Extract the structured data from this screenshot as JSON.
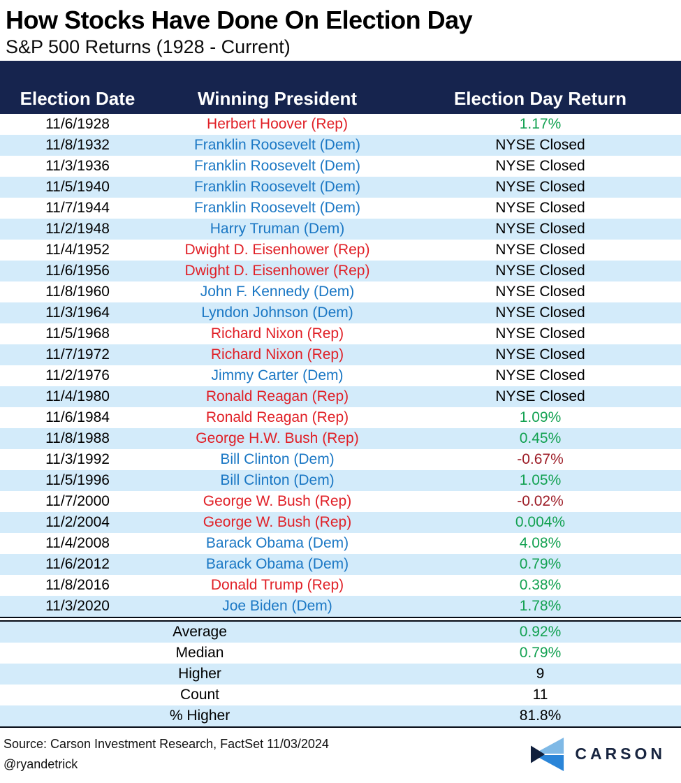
{
  "header": {
    "title": "How Stocks Have Done On Election Day",
    "subtitle": "S&P 500 Returns (1928 - Current)"
  },
  "chart_data": {
    "type": "table",
    "title": "How Stocks Have Done On Election Day",
    "subtitle": "S&P 500 Returns (1928 - Current)",
    "columns": [
      "Election Date",
      "Winning President",
      "Election Day Return"
    ],
    "rows": [
      {
        "date": "11/6/1928",
        "president": "Herbert Hoover (Rep)",
        "party": "rep",
        "return": "1.17%",
        "return_type": "positive"
      },
      {
        "date": "11/8/1932",
        "president": "Franklin Roosevelt (Dem)",
        "party": "dem",
        "return": "NYSE Closed",
        "return_type": "closed"
      },
      {
        "date": "11/3/1936",
        "president": "Franklin Roosevelt (Dem)",
        "party": "dem",
        "return": "NYSE Closed",
        "return_type": "closed"
      },
      {
        "date": "11/5/1940",
        "president": "Franklin Roosevelt (Dem)",
        "party": "dem",
        "return": "NYSE Closed",
        "return_type": "closed"
      },
      {
        "date": "11/7/1944",
        "president": "Franklin Roosevelt (Dem)",
        "party": "dem",
        "return": "NYSE Closed",
        "return_type": "closed"
      },
      {
        "date": "11/2/1948",
        "president": "Harry Truman (Dem)",
        "party": "dem",
        "return": "NYSE Closed",
        "return_type": "closed"
      },
      {
        "date": "11/4/1952",
        "president": "Dwight D. Eisenhower (Rep)",
        "party": "rep",
        "return": "NYSE Closed",
        "return_type": "closed"
      },
      {
        "date": "11/6/1956",
        "president": "Dwight D. Eisenhower (Rep)",
        "party": "rep",
        "return": "NYSE Closed",
        "return_type": "closed"
      },
      {
        "date": "11/8/1960",
        "president": "John F. Kennedy (Dem)",
        "party": "dem",
        "return": "NYSE Closed",
        "return_type": "closed"
      },
      {
        "date": "11/3/1964",
        "president": "Lyndon Johnson (Dem)",
        "party": "dem",
        "return": "NYSE Closed",
        "return_type": "closed"
      },
      {
        "date": "11/5/1968",
        "president": "Richard Nixon (Rep)",
        "party": "rep",
        "return": "NYSE Closed",
        "return_type": "closed"
      },
      {
        "date": "11/7/1972",
        "president": "Richard Nixon (Rep)",
        "party": "rep",
        "return": "NYSE Closed",
        "return_type": "closed"
      },
      {
        "date": "11/2/1976",
        "president": "Jimmy Carter (Dem)",
        "party": "dem",
        "return": "NYSE Closed",
        "return_type": "closed"
      },
      {
        "date": "11/4/1980",
        "president": "Ronald Reagan (Rep)",
        "party": "rep",
        "return": "NYSE Closed",
        "return_type": "closed"
      },
      {
        "date": "11/6/1984",
        "president": "Ronald Reagan (Rep)",
        "party": "rep",
        "return": "1.09%",
        "return_type": "positive"
      },
      {
        "date": "11/8/1988",
        "president": "George H.W. Bush (Rep)",
        "party": "rep",
        "return": "0.45%",
        "return_type": "positive"
      },
      {
        "date": "11/3/1992",
        "president": "Bill Clinton (Dem)",
        "party": "dem",
        "return": "-0.67%",
        "return_type": "negative"
      },
      {
        "date": "11/5/1996",
        "president": "Bill Clinton (Dem)",
        "party": "dem",
        "return": "1.05%",
        "return_type": "positive"
      },
      {
        "date": "11/7/2000",
        "president": "George W. Bush (Rep)",
        "party": "rep",
        "return": "-0.02%",
        "return_type": "negative"
      },
      {
        "date": "11/2/2004",
        "president": "George W. Bush (Rep)",
        "party": "rep",
        "return": "0.004%",
        "return_type": "positive"
      },
      {
        "date": "11/4/2008",
        "president": "Barack Obama (Dem)",
        "party": "dem",
        "return": "4.08%",
        "return_type": "positive"
      },
      {
        "date": "11/6/2012",
        "president": "Barack Obama (Dem)",
        "party": "dem",
        "return": "0.79%",
        "return_type": "positive"
      },
      {
        "date": "11/8/2016",
        "president": "Donald Trump (Rep)",
        "party": "rep",
        "return": "0.38%",
        "return_type": "positive"
      },
      {
        "date": "11/3/2020",
        "president": "Joe Biden (Dem)",
        "party": "dem",
        "return": "1.78%",
        "return_type": "positive"
      }
    ],
    "summary": [
      {
        "label": "Average",
        "value": "0.92%",
        "value_type": "positive"
      },
      {
        "label": "Median",
        "value": "0.79%",
        "value_type": "positive"
      },
      {
        "label": "Higher",
        "value": "9",
        "value_type": "neutral"
      },
      {
        "label": "Count",
        "value": "11",
        "value_type": "neutral"
      },
      {
        "label": "% Higher",
        "value": "81.8%",
        "value_type": "neutral"
      }
    ]
  },
  "footer": {
    "source": "Source: Carson Investment Research, FactSet 11/03/2024",
    "handle": "@ryandetrick",
    "logo_text": "CARSON"
  },
  "colors": {
    "header_navy": "#16244e",
    "stripe_blue": "#d3ebfa",
    "republican_red": "#e01f26",
    "democrat_blue": "#1a77c4",
    "positive_green": "#12a151",
    "negative_red": "#9d1d27",
    "logo_light_blue": "#7fb9e6",
    "logo_blue": "#2a85d8",
    "logo_navy": "#101f3c"
  }
}
